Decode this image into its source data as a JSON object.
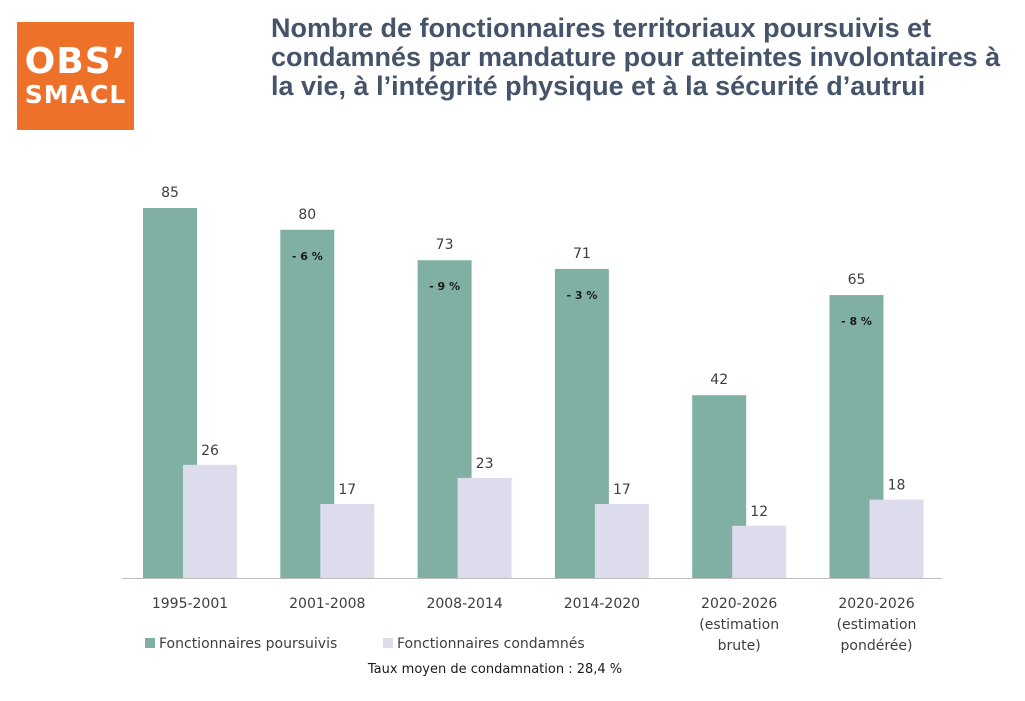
{
  "logo": {
    "line1": "OBS’",
    "line2": "SMACL"
  },
  "title": "Nombre de fonctionnaires territoriaux poursuivis et condamnés par mandature pour atteintes involontaires à la vie, à l’intégrité physique et à la sécurité d’autrui",
  "footnote": "Taux moyen de condamnation : 28,4 %",
  "colors": {
    "poursuivis": "#7fb0a3",
    "condamnes": "#dcdcec",
    "logo": "#ee7129",
    "title": "#45546a"
  },
  "chart_data": {
    "type": "bar",
    "categories": [
      [
        "1995-2001"
      ],
      [
        "2001-2008"
      ],
      [
        "2008-2014"
      ],
      [
        "2014-2020"
      ],
      [
        "2020-2026",
        "(estimation",
        "brute)"
      ],
      [
        "2020-2026",
        "(estimation",
        "pondérée)"
      ]
    ],
    "series": [
      {
        "name": "Fonctionnaires poursuivis",
        "values": [
          85,
          80,
          73,
          71,
          42,
          65
        ]
      },
      {
        "name": "Fonctionnaires condamnés",
        "values": [
          26,
          17,
          23,
          17,
          12,
          18
        ]
      }
    ],
    "annotations": [
      "",
      "- 6 %",
      "- 9 %",
      "- 3 %",
      "",
      "- 8 %"
    ],
    "ylim": [
      0,
      85
    ],
    "grid": false,
    "legend": "bottom-left"
  }
}
